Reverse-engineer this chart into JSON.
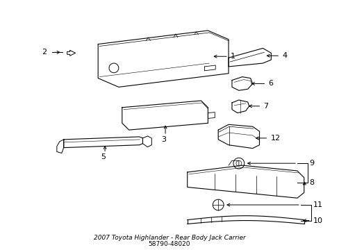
{
  "title": "2007 Toyota Highlander - Rear Body Jack Carrier",
  "part_number": "58790-48020",
  "background_color": "#ffffff",
  "line_color": "#000000",
  "line_width": 0.8,
  "label_fontsize": 8,
  "title_fontsize": 6.5
}
